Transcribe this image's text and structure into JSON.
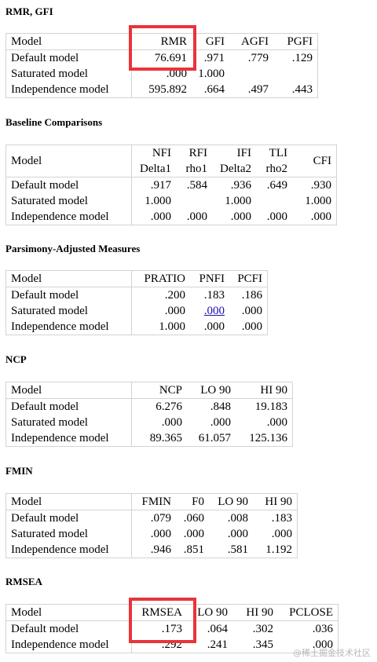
{
  "sections": {
    "rmr": {
      "title": "RMR, GFI",
      "header": [
        "Model",
        "RMR",
        "GFI",
        "AGFI",
        "PGFI"
      ],
      "rows": [
        [
          "Default model",
          "76.691",
          ".971",
          ".779",
          ".129"
        ],
        [
          "Saturated model",
          ".000",
          "1.000",
          "",
          ""
        ],
        [
          "Independence model",
          "595.892",
          ".664",
          ".497",
          ".443"
        ]
      ]
    },
    "baseline": {
      "title": "Baseline Comparisons",
      "header_top": [
        "Model",
        "NFI",
        "RFI",
        "IFI",
        "TLI",
        "CFI"
      ],
      "header_sub": [
        "",
        "Delta1",
        "rho1",
        "Delta2",
        "rho2",
        ""
      ],
      "rows": [
        [
          "Default model",
          ".917",
          ".584",
          ".936",
          ".649",
          ".930"
        ],
        [
          "Saturated model",
          "1.000",
          "",
          "1.000",
          "",
          "1.000"
        ],
        [
          "Independence model",
          ".000",
          ".000",
          ".000",
          ".000",
          ".000"
        ]
      ]
    },
    "parsimony": {
      "title": "Parsimony-Adjusted Measures",
      "header": [
        "Model",
        "PRATIO",
        "PNFI",
        "PCFI"
      ],
      "rows": [
        [
          "Default model",
          ".200",
          ".183",
          ".186"
        ],
        [
          "Saturated model",
          ".000",
          ".000",
          ".000"
        ],
        [
          "Independence model",
          "1.000",
          ".000",
          ".000"
        ]
      ]
    },
    "ncp": {
      "title": "NCP",
      "header": [
        "Model",
        "NCP",
        "LO 90",
        "HI 90"
      ],
      "rows": [
        [
          "Default model",
          "6.276",
          ".848",
          "19.183"
        ],
        [
          "Saturated model",
          ".000",
          ".000",
          ".000"
        ],
        [
          "Independence model",
          "89.365",
          "61.057",
          "125.136"
        ]
      ]
    },
    "fmin": {
      "title": "FMIN",
      "header": [
        "Model",
        "FMIN",
        "F0",
        "LO 90",
        "HI 90"
      ],
      "rows": [
        [
          "Default model",
          ".079",
          ".060",
          ".008",
          ".183"
        ],
        [
          "Saturated model",
          ".000",
          ".000",
          ".000",
          ".000"
        ],
        [
          "Independence model",
          ".946",
          ".851",
          ".581",
          "1.192"
        ]
      ]
    },
    "rmsea": {
      "title": "RMSEA",
      "header": [
        "Model",
        "RMSEA",
        "LO 90",
        "HI 90",
        "PCLOSE"
      ],
      "rows": [
        [
          "Default model",
          ".173",
          ".064",
          ".302",
          ".036"
        ],
        [
          "Independence model",
          ".292",
          ".241",
          ".345",
          ".000"
        ]
      ]
    }
  },
  "watermark": "@稀土掘金技术社区",
  "colors": {
    "highlight": "#e8343a",
    "link": "#1a0dab",
    "border": "#d3d3d3"
  }
}
